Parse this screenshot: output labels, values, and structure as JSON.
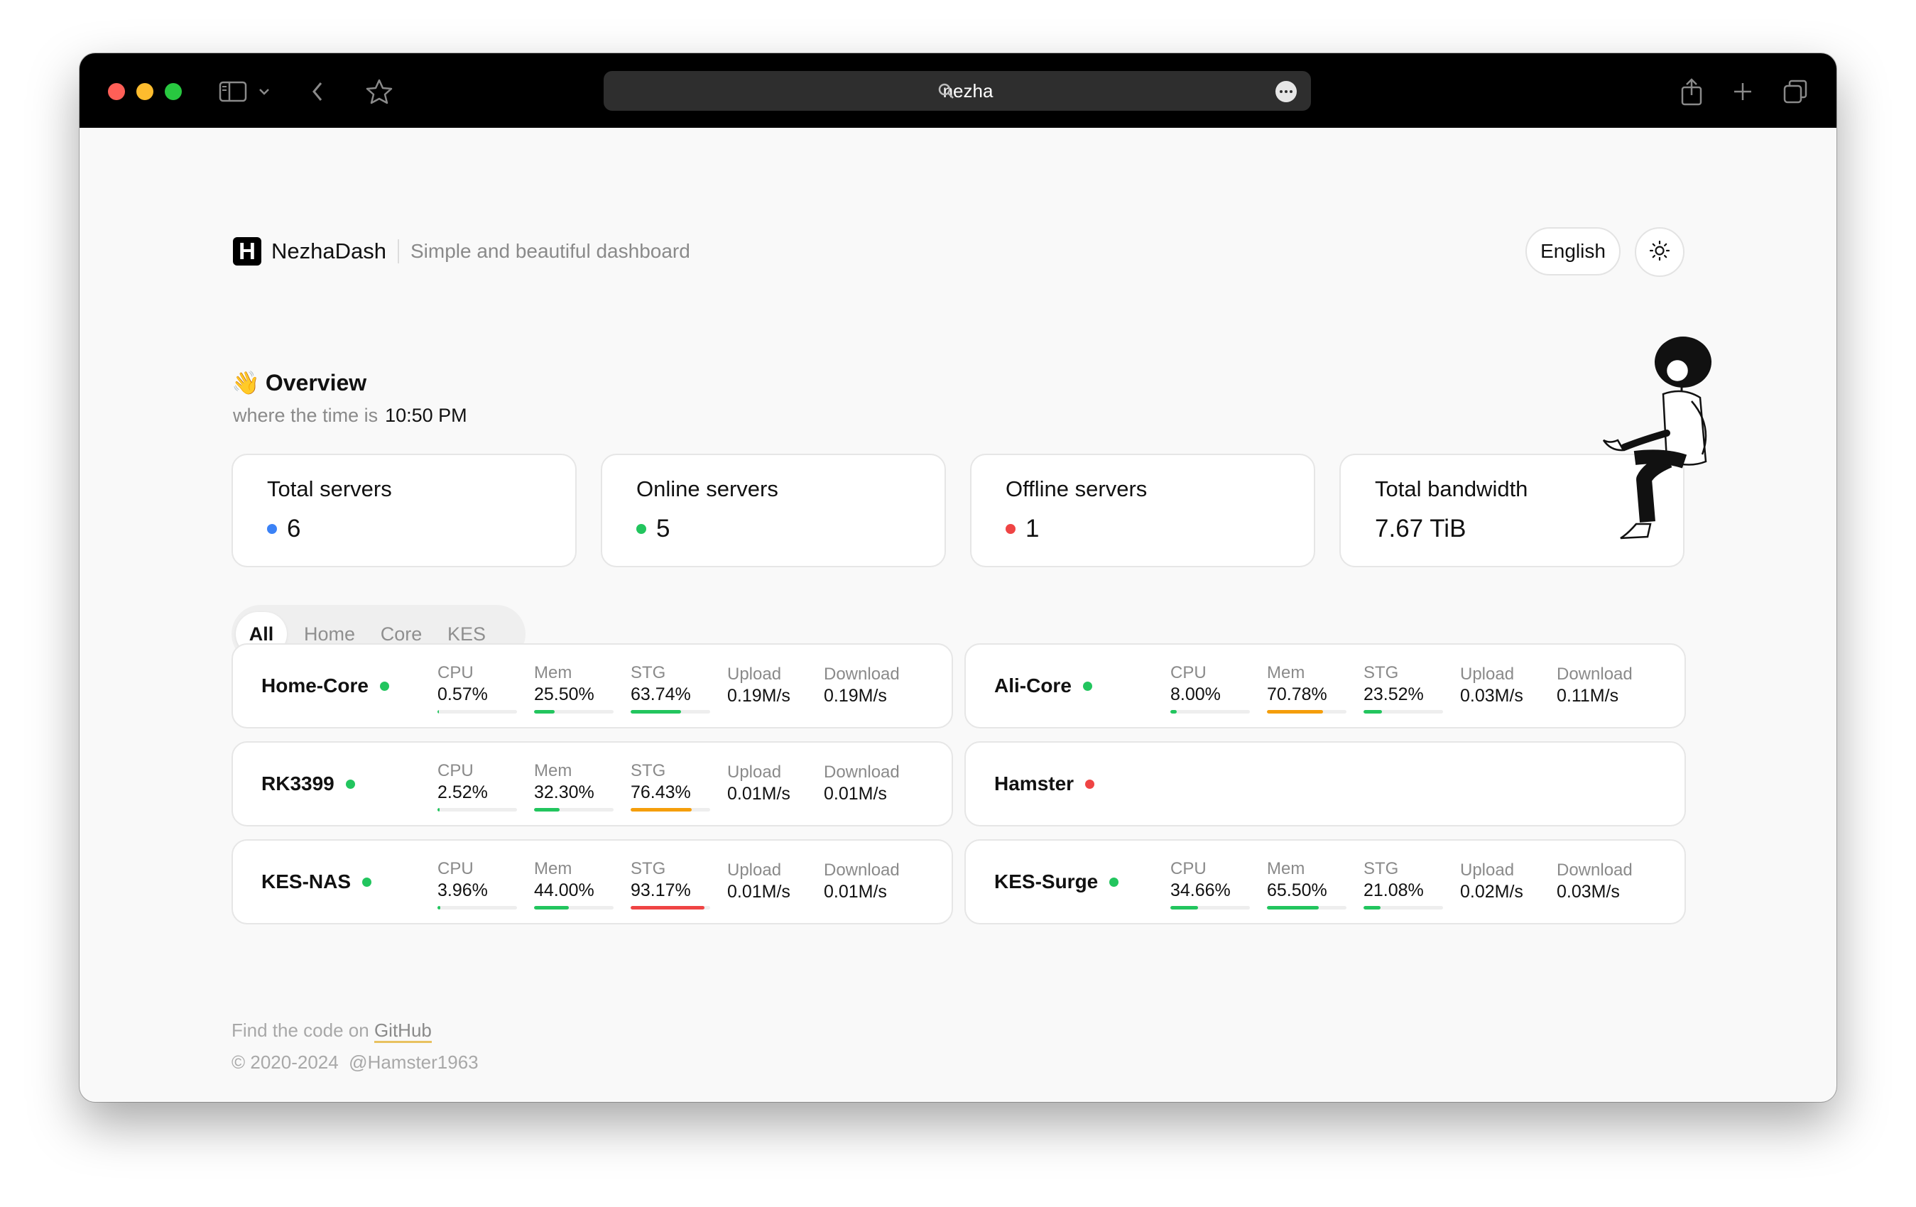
{
  "browser": {
    "url": "nezha"
  },
  "header": {
    "logo_letter": "H",
    "brand": "NezhaDash",
    "tagline": "Simple and beautiful dashboard",
    "language": "English"
  },
  "overview": {
    "emoji": "👋",
    "title": "Overview",
    "time_label": "where the time is",
    "time": "10:50 PM"
  },
  "stats": [
    {
      "label": "Total servers",
      "value": "6",
      "dot": "#3b82f6"
    },
    {
      "label": "Online servers",
      "value": "5",
      "dot": "#22c55e"
    },
    {
      "label": "Offline servers",
      "value": "1",
      "dot": "#ef4444"
    },
    {
      "label": "Total bandwidth",
      "value": "7.67 TiB"
    }
  ],
  "tabs": [
    "All",
    "Home",
    "Core",
    "KES"
  ],
  "metric_labels": {
    "cpu": "CPU",
    "mem": "Mem",
    "stg": "STG",
    "up": "Upload",
    "down": "Download"
  },
  "servers": [
    {
      "name": "Home-Core",
      "online": true,
      "cpu": "0.57%",
      "mem": "25.50%",
      "stg": "63.74%",
      "up": "0.19M/s",
      "down": "0.19M/s"
    },
    {
      "name": "Ali-Core",
      "online": true,
      "cpu": "8.00%",
      "mem": "70.78%",
      "stg": "23.52%",
      "up": "0.03M/s",
      "down": "0.11M/s"
    },
    {
      "name": "RK3399",
      "online": true,
      "cpu": "2.52%",
      "mem": "32.30%",
      "stg": "76.43%",
      "up": "0.01M/s",
      "down": "0.01M/s"
    },
    {
      "name": "Hamster",
      "online": false
    },
    {
      "name": "KES-NAS",
      "online": true,
      "cpu": "3.96%",
      "mem": "44.00%",
      "stg": "93.17%",
      "up": "0.01M/s",
      "down": "0.01M/s"
    },
    {
      "name": "KES-Surge",
      "online": true,
      "cpu": "34.66%",
      "mem": "65.50%",
      "stg": "21.08%",
      "up": "0.02M/s",
      "down": "0.03M/s"
    }
  ],
  "colors": {
    "ok": "#22c55e",
    "warn": "#f59e0b",
    "danger": "#ef4444",
    "online": "#22c55e",
    "offline": "#ef4444"
  },
  "footer": {
    "prefix": "Find the code on",
    "link": "GitHub",
    "copyright": "© 2020-2024",
    "author": "@Hamster1963"
  }
}
